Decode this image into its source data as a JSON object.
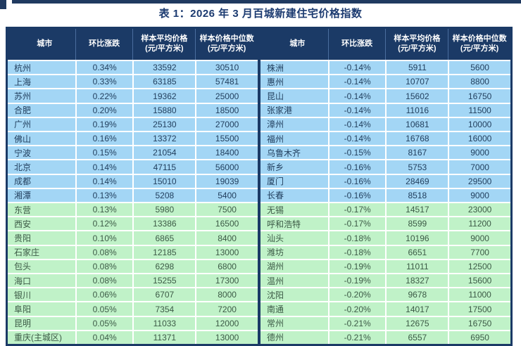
{
  "page": {
    "title": "表 1：2026 年 3 月百城新建住宅价格指数"
  },
  "colors": {
    "navy": "#1b3a66",
    "header_text": "#ffffff",
    "row_blue": "#a3d6f5",
    "row_green": "#c0f2c8",
    "separator": "#ffffff",
    "title_text": "#1b3a70"
  },
  "table": {
    "headers": {
      "city": "城市",
      "change": "环比涨跌",
      "avg_line1": "样本平均价格",
      "avg_line2": "(元/平方米)",
      "median_line1": "样本价格中位数",
      "median_line2": "(元/平方米)"
    },
    "green_start_index": 10,
    "left": {
      "rows": [
        {
          "city": "杭州",
          "change": "0.34%",
          "avg": "33592",
          "median": "30510"
        },
        {
          "city": "上海",
          "change": "0.33%",
          "avg": "63185",
          "median": "57481"
        },
        {
          "city": "苏州",
          "change": "0.22%",
          "avg": "19362",
          "median": "25000"
        },
        {
          "city": "合肥",
          "change": "0.20%",
          "avg": "15880",
          "median": "18500"
        },
        {
          "city": "广州",
          "change": "0.19%",
          "avg": "25130",
          "median": "27000"
        },
        {
          "city": "佛山",
          "change": "0.16%",
          "avg": "13372",
          "median": "15500"
        },
        {
          "city": "宁波",
          "change": "0.15%",
          "avg": "21054",
          "median": "18400"
        },
        {
          "city": "北京",
          "change": "0.14%",
          "avg": "47115",
          "median": "56000"
        },
        {
          "city": "成都",
          "change": "0.14%",
          "avg": "15010",
          "median": "19039"
        },
        {
          "city": "湘潭",
          "change": "0.13%",
          "avg": "5208",
          "median": "5400"
        },
        {
          "city": "东营",
          "change": "0.13%",
          "avg": "5980",
          "median": "7500"
        },
        {
          "city": "西安",
          "change": "0.12%",
          "avg": "13386",
          "median": "16500"
        },
        {
          "city": "贵阳",
          "change": "0.10%",
          "avg": "6865",
          "median": "8400"
        },
        {
          "city": "石家庄",
          "change": "0.08%",
          "avg": "12185",
          "median": "13000"
        },
        {
          "city": "包头",
          "change": "0.08%",
          "avg": "6298",
          "median": "6800"
        },
        {
          "city": "海口",
          "change": "0.08%",
          "avg": "15255",
          "median": "17300"
        },
        {
          "city": "银川",
          "change": "0.06%",
          "avg": "6707",
          "median": "8000"
        },
        {
          "city": "阜阳",
          "change": "0.05%",
          "avg": "7354",
          "median": "7200"
        },
        {
          "city": "昆明",
          "change": "0.05%",
          "avg": "11033",
          "median": "12000"
        },
        {
          "city": "重庆(主城区)",
          "change": "0.04%",
          "avg": "11371",
          "median": "13000"
        }
      ]
    },
    "right": {
      "rows": [
        {
          "city": "株洲",
          "change": "-0.14%",
          "avg": "5911",
          "median": "5600"
        },
        {
          "city": "惠州",
          "change": "-0.14%",
          "avg": "10707",
          "median": "8800"
        },
        {
          "city": "昆山",
          "change": "-0.14%",
          "avg": "15602",
          "median": "16750"
        },
        {
          "city": "张家港",
          "change": "-0.14%",
          "avg": "11016",
          "median": "11500"
        },
        {
          "city": "漳州",
          "change": "-0.14%",
          "avg": "10681",
          "median": "10000"
        },
        {
          "city": "福州",
          "change": "-0.14%",
          "avg": "16768",
          "median": "16000"
        },
        {
          "city": "乌鲁木齐",
          "change": "-0.15%",
          "avg": "8167",
          "median": "9000"
        },
        {
          "city": "新乡",
          "change": "-0.16%",
          "avg": "5753",
          "median": "7000"
        },
        {
          "city": "厦门",
          "change": "-0.16%",
          "avg": "28469",
          "median": "29500"
        },
        {
          "city": "长春",
          "change": "-0.16%",
          "avg": "8518",
          "median": "9000"
        },
        {
          "city": "无锡",
          "change": "-0.17%",
          "avg": "14517",
          "median": "23000"
        },
        {
          "city": "呼和浩特",
          "change": "-0.17%",
          "avg": "8599",
          "median": "11200"
        },
        {
          "city": "汕头",
          "change": "-0.18%",
          "avg": "10196",
          "median": "9000"
        },
        {
          "city": "潍坊",
          "change": "-0.18%",
          "avg": "6651",
          "median": "7700"
        },
        {
          "city": "湖州",
          "change": "-0.19%",
          "avg": "11011",
          "median": "12500"
        },
        {
          "city": "温州",
          "change": "-0.19%",
          "avg": "18327",
          "median": "15600"
        },
        {
          "city": "沈阳",
          "change": "-0.20%",
          "avg": "9678",
          "median": "11000"
        },
        {
          "city": "南通",
          "change": "-0.20%",
          "avg": "14017",
          "median": "17500"
        },
        {
          "city": "常州",
          "change": "-0.21%",
          "avg": "12675",
          "median": "16750"
        },
        {
          "city": "德州",
          "change": "-0.21%",
          "avg": "6557",
          "median": "6950"
        }
      ]
    }
  }
}
